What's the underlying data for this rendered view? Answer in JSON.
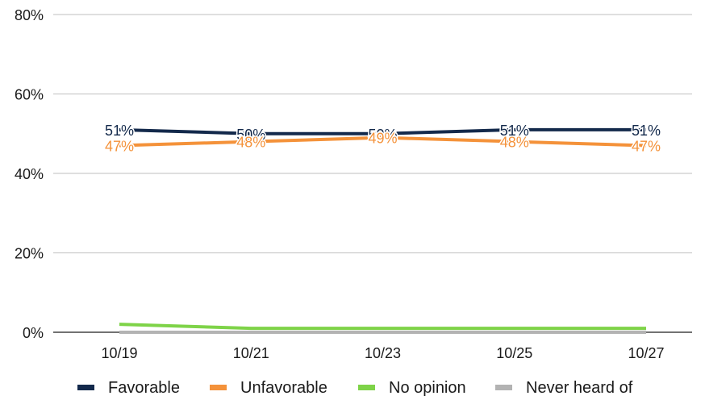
{
  "chart_data": {
    "type": "line",
    "categories": [
      "10/19",
      "10/21",
      "10/23",
      "10/25",
      "10/27"
    ],
    "y_ticks": [
      "0%",
      "20%",
      "40%",
      "60%",
      "80%"
    ],
    "ylim": [
      0,
      80
    ],
    "grid": true,
    "legend_position": "bottom",
    "series": [
      {
        "name": "Favorable",
        "color": "#13294b",
        "values": [
          51,
          50,
          50,
          51,
          51
        ],
        "labels": [
          "51%",
          "50%",
          "50%",
          "51%",
          "51%"
        ]
      },
      {
        "name": "Unfavorable",
        "color": "#f4923a",
        "values": [
          47,
          48,
          49,
          48,
          47
        ],
        "labels": [
          "47%",
          "48%",
          "49%",
          "48%",
          "47%"
        ]
      },
      {
        "name": "No opinion",
        "color": "#7ed348",
        "values": [
          2,
          1,
          1,
          1,
          1
        ],
        "labels": []
      },
      {
        "name": "Never heard of",
        "color": "#b3b3b3",
        "values": [
          0,
          0,
          0,
          0,
          0
        ],
        "labels": []
      }
    ]
  }
}
